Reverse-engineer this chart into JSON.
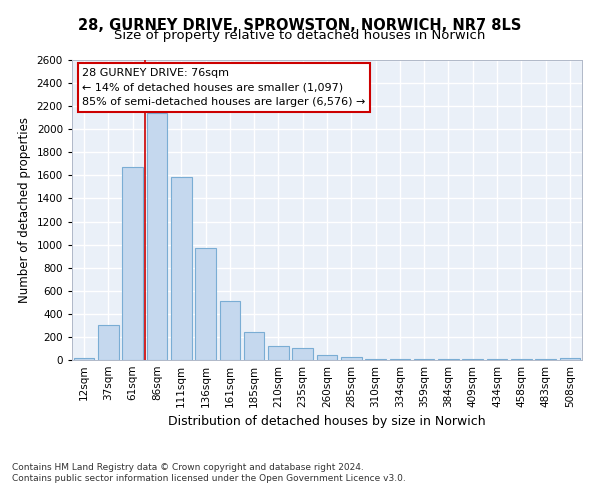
{
  "title1": "28, GURNEY DRIVE, SPROWSTON, NORWICH, NR7 8LS",
  "title2": "Size of property relative to detached houses in Norwich",
  "xlabel": "Distribution of detached houses by size in Norwich",
  "ylabel": "Number of detached properties",
  "categories": [
    "12sqm",
    "37sqm",
    "61sqm",
    "86sqm",
    "111sqm",
    "136sqm",
    "161sqm",
    "185sqm",
    "210sqm",
    "235sqm",
    "260sqm",
    "285sqm",
    "310sqm",
    "334sqm",
    "359sqm",
    "384sqm",
    "409sqm",
    "434sqm",
    "458sqm",
    "483sqm",
    "508sqm"
  ],
  "values": [
    20,
    300,
    1670,
    2140,
    1590,
    970,
    510,
    245,
    120,
    100,
    40,
    30,
    10,
    5,
    5,
    5,
    5,
    5,
    5,
    5,
    20
  ],
  "bar_color": "#c5d8ee",
  "bar_edge_color": "#7aadd4",
  "annotation_title": "28 GURNEY DRIVE: 76sqm",
  "annotation_line2": "← 14% of detached houses are smaller (1,097)",
  "annotation_line3": "85% of semi-detached houses are larger (6,576) →",
  "annotation_box_color": "#ffffff",
  "annotation_box_edge": "#cc0000",
  "footer1": "Contains HM Land Registry data © Crown copyright and database right 2024.",
  "footer2": "Contains public sector information licensed under the Open Government Licence v3.0.",
  "ylim": [
    0,
    2600
  ],
  "yticks": [
    0,
    200,
    400,
    600,
    800,
    1000,
    1200,
    1400,
    1600,
    1800,
    2000,
    2200,
    2400,
    2600
  ],
  "bg_color": "#eaf0f8",
  "fig_bg_color": "#ffffff",
  "grid_color": "#ffffff",
  "red_line_x": 2.5,
  "red_line_color": "#cc0000",
  "title1_fontsize": 10.5,
  "title2_fontsize": 9.5,
  "xlabel_fontsize": 9,
  "ylabel_fontsize": 8.5,
  "tick_fontsize": 7.5,
  "annotation_fontsize": 8,
  "footer_fontsize": 6.5
}
